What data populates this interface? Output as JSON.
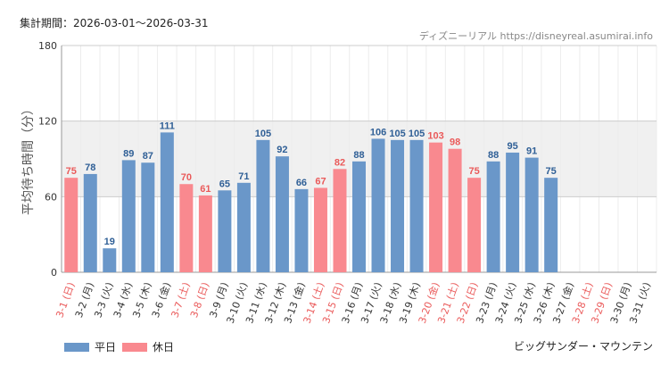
{
  "header": {
    "period": "集計期間：2026-03-01～2026-03-31",
    "source": "ディズニーリアル https://disneyreal.asumirai.info"
  },
  "colors": {
    "weekday": "#6a97c9",
    "holiday": "#f9898f",
    "weekday_label": "#2f5f96",
    "holiday_label": "#ea5a5a",
    "weekday_date": "#333333",
    "holiday_date": "#ea5a5a",
    "band": "#f0f0f0",
    "grid": "#cccccc"
  },
  "legend": {
    "weekday": "平日",
    "holiday": "休日"
  },
  "footer": {
    "attraction": "ビッグサンダー・マウンテン"
  },
  "chart_data": {
    "type": "bar",
    "title": "",
    "ylabel": "平均待ち時間（分）",
    "xlabel": "",
    "ylim": [
      0,
      180
    ],
    "yticks": [
      0,
      60,
      120,
      180
    ],
    "band": [
      60,
      120
    ],
    "categories": [
      "3-1 (日)",
      "3-2 (月)",
      "3-3 (火)",
      "3-4 (水)",
      "3-5 (木)",
      "3-6 (金)",
      "3-7 (土)",
      "3-8 (日)",
      "3-9 (月)",
      "3-10 (火)",
      "3-11 (水)",
      "3-12 (木)",
      "3-13 (金)",
      "3-14 (土)",
      "3-15 (日)",
      "3-16 (月)",
      "3-17 (火)",
      "3-18 (水)",
      "3-19 (木)",
      "3-20 (金)",
      "3-21 (土)",
      "3-22 (日)",
      "3-23 (月)",
      "3-24 (火)",
      "3-25 (水)",
      "3-26 (木)",
      "3-27 (金)",
      "3-28 (土)",
      "3-29 (日)",
      "3-30 (月)",
      "3-31 (火)"
    ],
    "values": [
      75,
      78,
      19,
      89,
      87,
      111,
      70,
      61,
      65,
      71,
      105,
      92,
      66,
      67,
      82,
      88,
      106,
      105,
      105,
      103,
      98,
      75,
      88,
      95,
      91,
      75,
      null,
      null,
      null,
      null,
      null
    ],
    "day_type": [
      "holiday",
      "weekday",
      "weekday",
      "weekday",
      "weekday",
      "weekday",
      "holiday",
      "holiday",
      "weekday",
      "weekday",
      "weekday",
      "weekday",
      "weekday",
      "holiday",
      "holiday",
      "weekday",
      "weekday",
      "weekday",
      "weekday",
      "holiday",
      "holiday",
      "holiday",
      "weekday",
      "weekday",
      "weekday",
      "weekday",
      "weekday",
      "holiday",
      "holiday",
      "weekday",
      "weekday"
    ],
    "series": [
      {
        "name": "平日",
        "key": "weekday"
      },
      {
        "name": "休日",
        "key": "holiday"
      }
    ]
  }
}
